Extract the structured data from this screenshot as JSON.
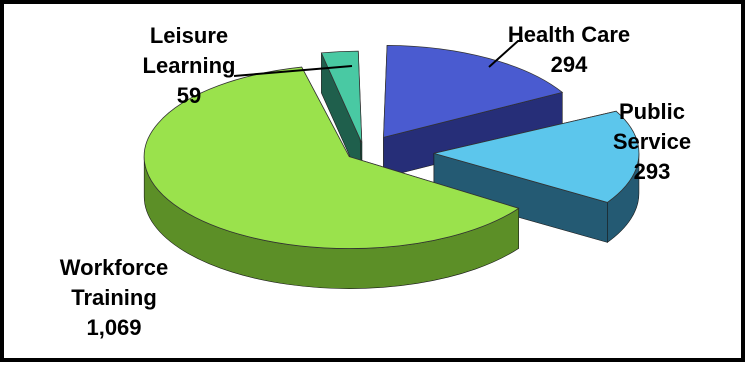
{
  "chart_data": {
    "type": "pie",
    "style": "3d-exploded",
    "slices": [
      {
        "label_lines": [
          "Health Care"
        ],
        "value_text": "294",
        "value": 294,
        "color": "#4a5bd0",
        "side_color": "#262e78"
      },
      {
        "label_lines": [
          "Public",
          "Service"
        ],
        "value_text": "293",
        "value": 293,
        "color": "#5cc6ec",
        "side_color": "#245a73"
      },
      {
        "label_lines": [
          "Workforce",
          "Training"
        ],
        "value_text": "1,069",
        "value": 1069,
        "color": "#9ae24c",
        "side_color": "#5c8f27"
      },
      {
        "label_lines": [
          "Leisure",
          "Learning"
        ],
        "value_text": "59",
        "value": 59,
        "color": "#49c9a3",
        "side_color": "#1f5f4c"
      }
    ],
    "legend": "none"
  }
}
